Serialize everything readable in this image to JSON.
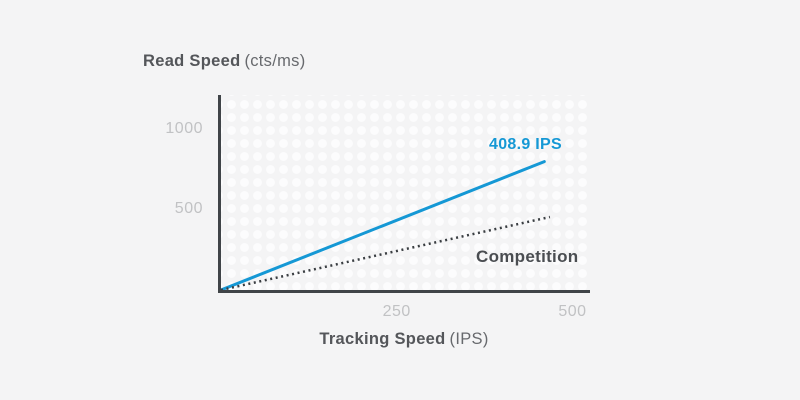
{
  "colors": {
    "background": "#f4f4f5",
    "plot_dot_pattern": "#fcfcfd",
    "axis": "#404448",
    "tick_labels": "#c1c2c4",
    "title_text": "#54565a",
    "accent_blue": "#1598d5",
    "competition_dark": "#3a3e42"
  },
  "chart_data": {
    "type": "line",
    "title": "Read Speed (cts/ms)",
    "ylabel_bold": "Read Speed",
    "ylabel_unit": "(cts/ms)",
    "xlabel_bold": "Tracking Speed",
    "xlabel_unit": "(IPS)",
    "x_ticks": [
      250,
      500
    ],
    "y_ticks": [
      500,
      1000
    ],
    "xlim": [
      0,
      525
    ],
    "ylim": [
      0,
      1215
    ],
    "grid": "white-dot-pattern-background",
    "legend_position": "inline-annotations",
    "series": [
      {
        "id": "main-sensor",
        "name": "408.9 IPS",
        "style": "solid",
        "color": "#1598d5",
        "points": [
          [
            0,
            0
          ],
          [
            460,
            800
          ]
        ]
      },
      {
        "id": "competition",
        "name": "Competition",
        "style": "dotted",
        "color": "#3a3e42",
        "points": [
          [
            0,
            0
          ],
          [
            468,
            455
          ]
        ]
      }
    ]
  }
}
